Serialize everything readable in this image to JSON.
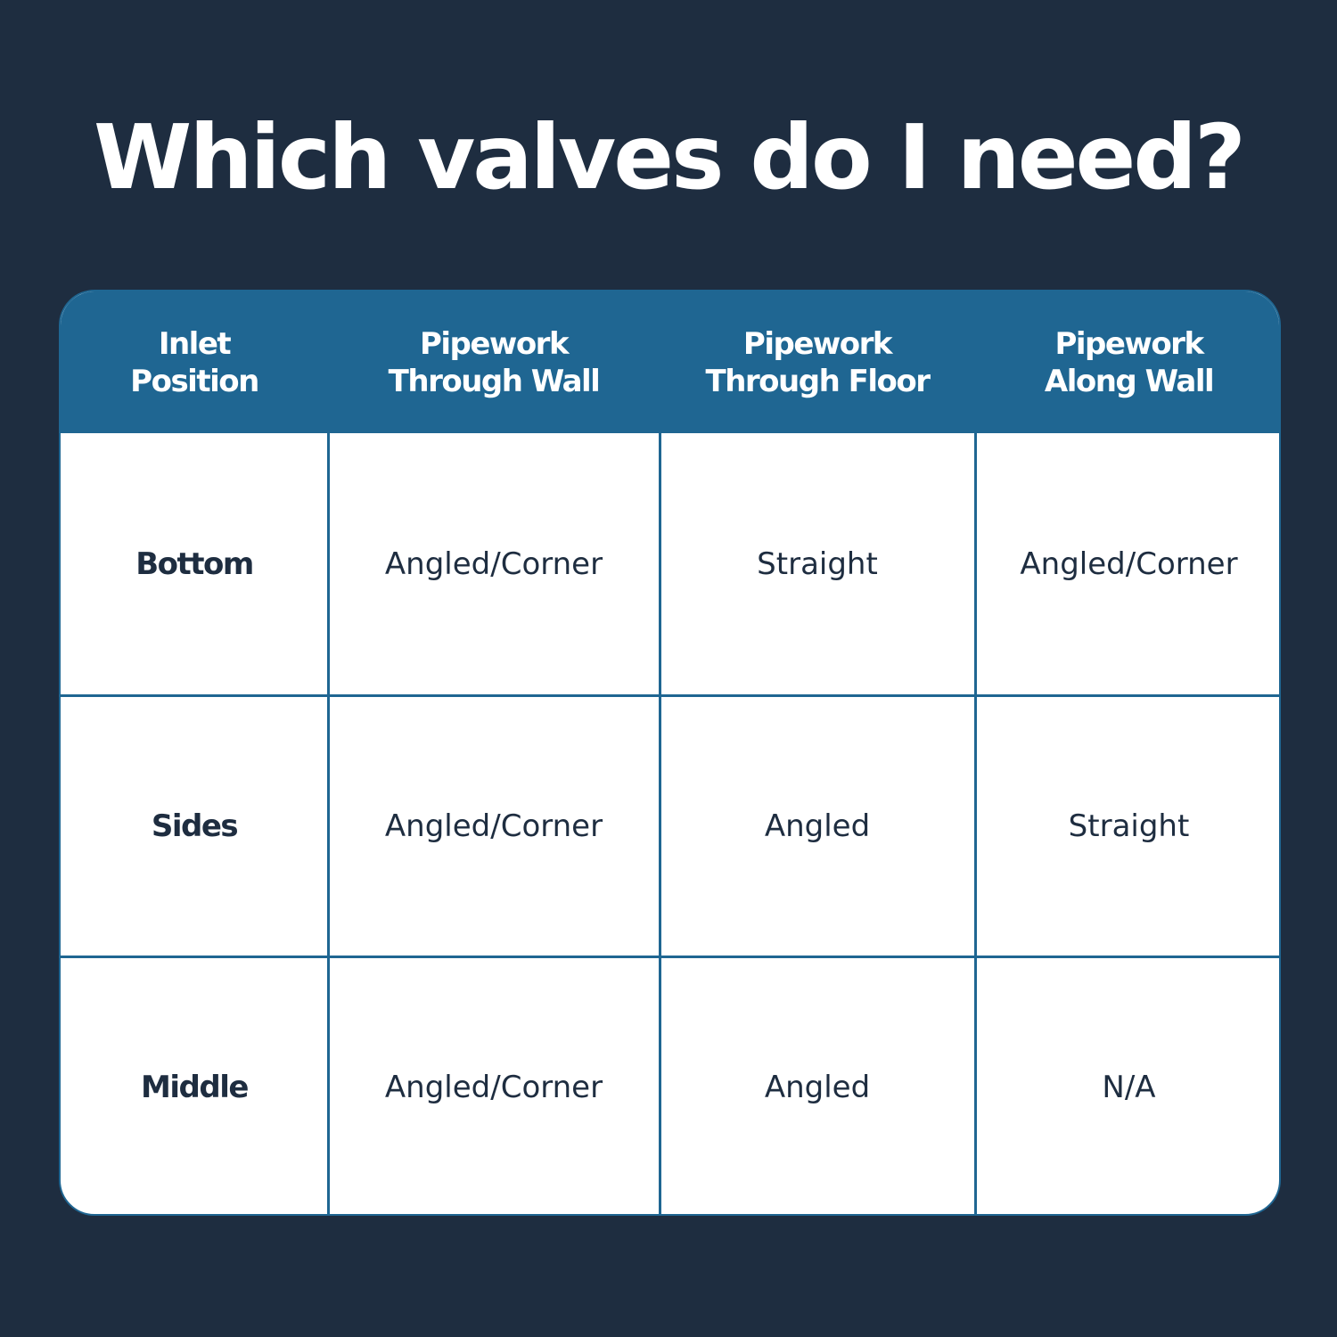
{
  "title": "Which valves do I need?",
  "table": {
    "headers": [
      "Inlet\nPosition",
      "Pipework\nThrough Wall",
      "Pipework\nThrough Floor",
      "Pipework\nAlong Wall"
    ],
    "rows": [
      [
        "Bottom",
        "Angled/Corner",
        "Straight",
        "Angled/Corner"
      ],
      [
        "Sides",
        "Angled/Corner",
        "Angled",
        "Straight"
      ],
      [
        "Middle",
        "Angled/Corner",
        "Angled",
        "N/A"
      ]
    ]
  },
  "colors": {
    "background": "#1e2d40",
    "header": "#1f6692",
    "text": "#1e2d40"
  }
}
